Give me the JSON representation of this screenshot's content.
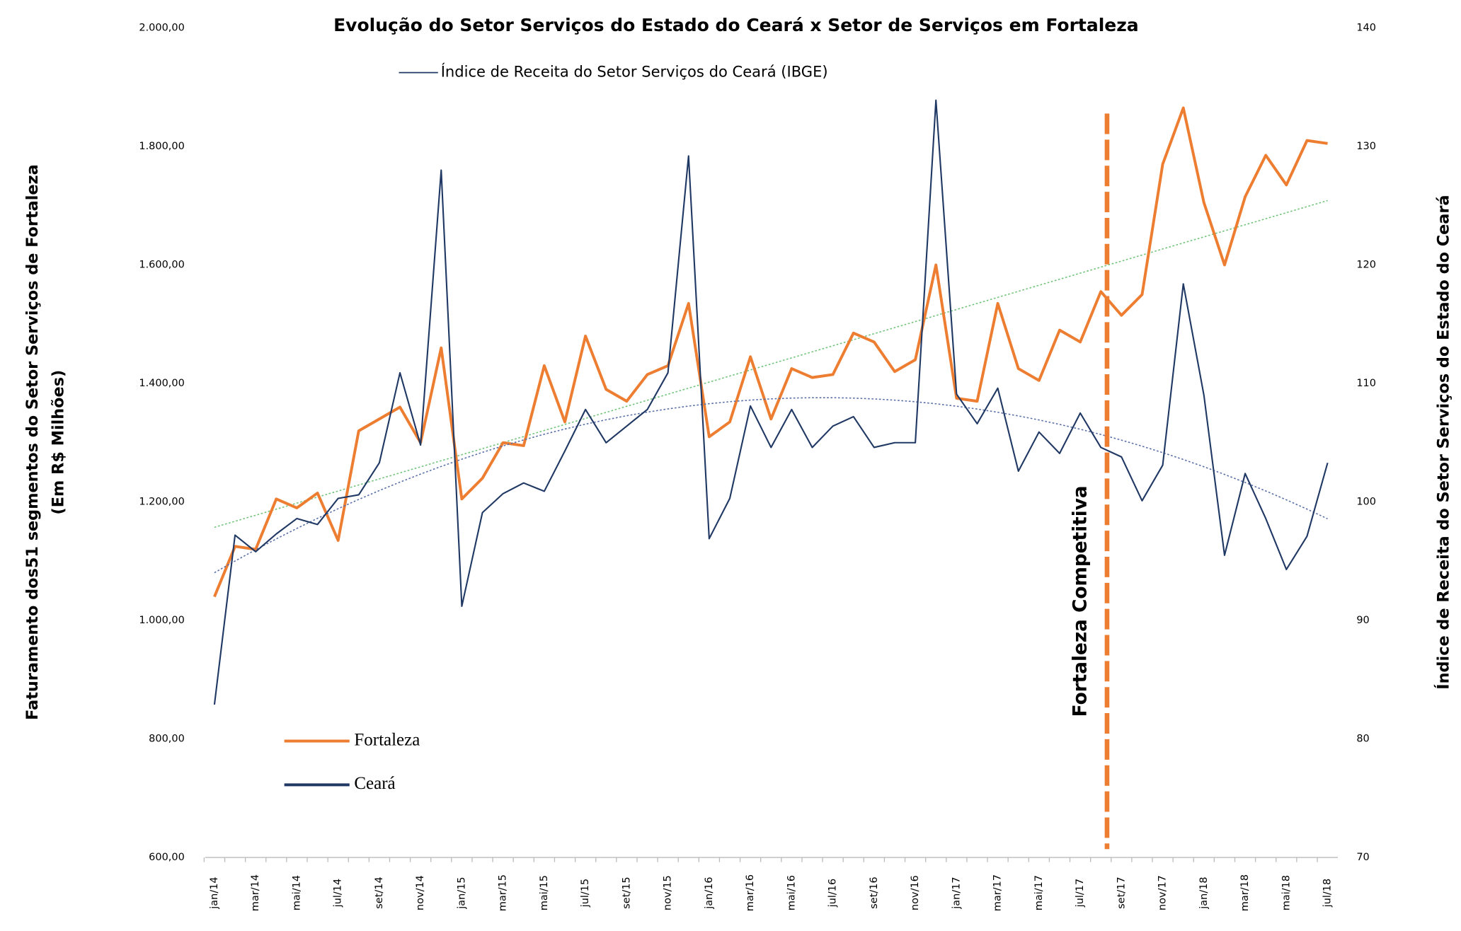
{
  "chart_data": {
    "type": "line",
    "title": "Evolução do Setor Serviços do Estado do Ceará x Setor de Serviços em Fortaleza",
    "legend_note": "Índice de Receita do Setor Serviços do Ceará (IBGE)",
    "ylabel": [
      "Faturamento dos51  segmentos do Setor Serviços de Fortaleza",
      "(Em R$ Milhões)"
    ],
    "y2label": "Índice de Receita do Setor Serviços do Estado do Ceará",
    "annotation": "Fortaleza Competitiva",
    "legend": "lower left",
    "categories": [
      "jan/14",
      null,
      "mar/14",
      null,
      "mai/14",
      null,
      "jul/14",
      null,
      "set/14",
      null,
      "nov/14",
      null,
      "jan/15",
      null,
      "mar/15",
      null,
      "mai/15",
      null,
      "jul/15",
      null,
      "set/15",
      null,
      "nov/15",
      null,
      "jan/16",
      null,
      "mar/16",
      null,
      "mai/16",
      null,
      "jul/16",
      null,
      "set/16",
      null,
      "nov/16",
      null,
      "jan/17",
      null,
      "mar/17",
      null,
      "mai/17",
      null,
      "jul/17",
      null,
      "set/17",
      null,
      "nov/17",
      null,
      "jan/18",
      null,
      "mar/18",
      null,
      "mai/18",
      null,
      "jul/18"
    ],
    "series": [
      {
        "name": "Fortaleza",
        "color": "#ed7d31",
        "trend": "linear",
        "trend_color": "#70c47a",
        "values": [
          1040,
          1125,
          1120,
          1205,
          1190,
          1215,
          1135,
          1320,
          1340,
          1360,
          1300,
          1460,
          1205,
          1240,
          1300,
          1295,
          1430,
          1335,
          1480,
          1390,
          1370,
          1415,
          1430,
          1535,
          1310,
          1335,
          1445,
          1340,
          1425,
          1410,
          1415,
          1485,
          1470,
          1420,
          1440,
          1600,
          1375,
          1370,
          1535,
          1425,
          1405,
          1490,
          1470,
          1555,
          1515,
          1550,
          1770,
          1865,
          1705,
          1600,
          1715,
          1785,
          1735,
          1810,
          1805
        ]
      },
      {
        "name": "Ceará",
        "color": "#203864",
        "axis": "y2",
        "trend": "poly2",
        "trend_color": "#5a6fa8",
        "values": [
          82.9,
          97.2,
          95.8,
          97.3,
          98.6,
          98.1,
          100.3,
          100.6,
          103.3,
          110.9,
          104.8,
          128.0,
          91.2,
          99.1,
          100.7,
          101.6,
          100.9,
          104.3,
          107.8,
          105.0,
          106.4,
          107.8,
          110.9,
          129.2,
          96.9,
          100.3,
          108.1,
          104.6,
          107.8,
          104.6,
          106.4,
          107.2,
          104.6,
          105.0,
          105.0,
          133.9,
          109.1,
          106.6,
          109.6,
          102.6,
          105.9,
          104.1,
          107.5,
          104.6,
          103.8,
          100.1,
          103.1,
          118.4,
          109.0,
          95.5,
          102.4,
          98.6,
          94.3,
          97.1,
          103.3
        ]
      }
    ],
    "ylim": [
      600,
      2000
    ],
    "yticks": [
      {
        "value": 600,
        "label": "600,00"
      },
      {
        "value": 800,
        "label": "800,00"
      },
      {
        "value": 1000,
        "label": "1.000,00"
      },
      {
        "value": 1200,
        "label": "1.200,00"
      },
      {
        "value": 1400,
        "label": "1.400,00"
      },
      {
        "value": 1600,
        "label": "1.600,00"
      },
      {
        "value": 1800,
        "label": "1.800,00"
      },
      {
        "value": 2000,
        "label": "2.000,00"
      }
    ],
    "y2lim": [
      70,
      140
    ],
    "y2ticks": [
      70,
      80,
      90,
      100,
      110,
      120,
      130,
      140
    ],
    "grid": false
  }
}
